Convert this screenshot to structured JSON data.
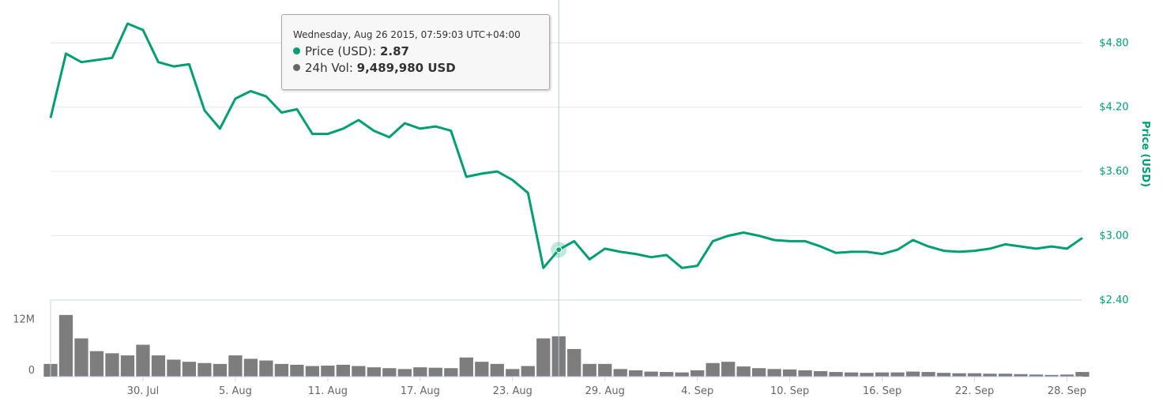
{
  "chart_data": {
    "type": "line",
    "x_axis": {
      "type": "date",
      "range": [
        "2015-07-24",
        "2015-09-29"
      ],
      "tick_labels": [
        "30. Jul",
        "5. Aug",
        "11. Aug",
        "17. Aug",
        "23. Aug",
        "29. Aug",
        "4. Sep",
        "10. Sep",
        "16. Sep",
        "22. Sep",
        "28. Sep"
      ]
    },
    "price_axis": {
      "title": "Price (USD)",
      "ylim": [
        2.4,
        5.2
      ],
      "tick_labels": [
        "$2.40",
        "$3.00",
        "$3.60",
        "$4.20",
        "$4.80"
      ],
      "ticks": [
        2.4,
        3.0,
        3.6,
        4.2,
        4.8
      ],
      "position": "right",
      "grid": true
    },
    "volume_axis": {
      "ylim": [
        0,
        18000000
      ],
      "tick_labels": [
        "0",
        "12M"
      ],
      "ticks": [
        0,
        12000000
      ],
      "position": "left"
    },
    "series": [
      {
        "name": "Price (USD)",
        "color": "#009e73",
        "points": [
          [
            "2015-07-24",
            4.1
          ],
          [
            "2015-07-25",
            4.7
          ],
          [
            "2015-07-26",
            4.62
          ],
          [
            "2015-07-27",
            4.64
          ],
          [
            "2015-07-28",
            4.66
          ],
          [
            "2015-07-29",
            4.98
          ],
          [
            "2015-07-30",
            4.92
          ],
          [
            "2015-07-31",
            4.62
          ],
          [
            "2015-08-01",
            4.58
          ],
          [
            "2015-08-02",
            4.6
          ],
          [
            "2015-08-03",
            4.17
          ],
          [
            "2015-08-04",
            4.0
          ],
          [
            "2015-08-05",
            4.28
          ],
          [
            "2015-08-06",
            4.35
          ],
          [
            "2015-08-07",
            4.3
          ],
          [
            "2015-08-08",
            4.15
          ],
          [
            "2015-08-09",
            4.18
          ],
          [
            "2015-08-10",
            3.95
          ],
          [
            "2015-08-11",
            3.95
          ],
          [
            "2015-08-12",
            4.0
          ],
          [
            "2015-08-13",
            4.08
          ],
          [
            "2015-08-14",
            3.98
          ],
          [
            "2015-08-15",
            3.92
          ],
          [
            "2015-08-16",
            4.05
          ],
          [
            "2015-08-17",
            4.0
          ],
          [
            "2015-08-18",
            4.02
          ],
          [
            "2015-08-19",
            3.98
          ],
          [
            "2015-08-20",
            3.55
          ],
          [
            "2015-08-21",
            3.58
          ],
          [
            "2015-08-22",
            3.6
          ],
          [
            "2015-08-23",
            3.52
          ],
          [
            "2015-08-24",
            3.4
          ],
          [
            "2015-08-25",
            2.7
          ],
          [
            "2015-08-26",
            2.87
          ],
          [
            "2015-08-27",
            2.95
          ],
          [
            "2015-08-28",
            2.78
          ],
          [
            "2015-08-29",
            2.88
          ],
          [
            "2015-08-30",
            2.85
          ],
          [
            "2015-08-31",
            2.83
          ],
          [
            "2015-09-01",
            2.8
          ],
          [
            "2015-09-02",
            2.82
          ],
          [
            "2015-09-03",
            2.7
          ],
          [
            "2015-09-04",
            2.72
          ],
          [
            "2015-09-05",
            2.95
          ],
          [
            "2015-09-06",
            3.0
          ],
          [
            "2015-09-07",
            3.03
          ],
          [
            "2015-09-08",
            3.0
          ],
          [
            "2015-09-09",
            2.96
          ],
          [
            "2015-09-10",
            2.95
          ],
          [
            "2015-09-11",
            2.95
          ],
          [
            "2015-09-12",
            2.9
          ],
          [
            "2015-09-13",
            2.84
          ],
          [
            "2015-09-14",
            2.85
          ],
          [
            "2015-09-15",
            2.85
          ],
          [
            "2015-09-16",
            2.83
          ],
          [
            "2015-09-17",
            2.87
          ],
          [
            "2015-09-18",
            2.96
          ],
          [
            "2015-09-19",
            2.9
          ],
          [
            "2015-09-20",
            2.86
          ],
          [
            "2015-09-21",
            2.85
          ],
          [
            "2015-09-22",
            2.86
          ],
          [
            "2015-09-23",
            2.88
          ],
          [
            "2015-09-24",
            2.92
          ],
          [
            "2015-09-25",
            2.9
          ],
          [
            "2015-09-26",
            2.88
          ],
          [
            "2015-09-27",
            2.9
          ],
          [
            "2015-09-28",
            2.88
          ],
          [
            "2015-09-29",
            2.98
          ]
        ]
      },
      {
        "name": "24h Vol",
        "color": "#666666",
        "points": [
          [
            "2015-07-24",
            3000000
          ],
          [
            "2015-07-25",
            14500000
          ],
          [
            "2015-07-26",
            9000000
          ],
          [
            "2015-07-27",
            6000000
          ],
          [
            "2015-07-28",
            5500000
          ],
          [
            "2015-07-29",
            5000000
          ],
          [
            "2015-07-30",
            7500000
          ],
          [
            "2015-07-31",
            5000000
          ],
          [
            "2015-08-01",
            4000000
          ],
          [
            "2015-08-02",
            3500000
          ],
          [
            "2015-08-03",
            3200000
          ],
          [
            "2015-08-04",
            3000000
          ],
          [
            "2015-08-05",
            5000000
          ],
          [
            "2015-08-06",
            4200000
          ],
          [
            "2015-08-07",
            3800000
          ],
          [
            "2015-08-08",
            3000000
          ],
          [
            "2015-08-09",
            2800000
          ],
          [
            "2015-08-10",
            2500000
          ],
          [
            "2015-08-11",
            2600000
          ],
          [
            "2015-08-12",
            2800000
          ],
          [
            "2015-08-13",
            2500000
          ],
          [
            "2015-08-14",
            2200000
          ],
          [
            "2015-08-15",
            2000000
          ],
          [
            "2015-08-16",
            1800000
          ],
          [
            "2015-08-17",
            2200000
          ],
          [
            "2015-08-18",
            2100000
          ],
          [
            "2015-08-19",
            2000000
          ],
          [
            "2015-08-20",
            4500000
          ],
          [
            "2015-08-21",
            3500000
          ],
          [
            "2015-08-22",
            3000000
          ],
          [
            "2015-08-23",
            1800000
          ],
          [
            "2015-08-24",
            2500000
          ],
          [
            "2015-08-25",
            9000000
          ],
          [
            "2015-08-26",
            9489980
          ],
          [
            "2015-08-27",
            6500000
          ],
          [
            "2015-08-28",
            3000000
          ],
          [
            "2015-08-29",
            3000000
          ],
          [
            "2015-08-30",
            1800000
          ],
          [
            "2015-08-31",
            1500000
          ],
          [
            "2015-09-01",
            1200000
          ],
          [
            "2015-09-02",
            1100000
          ],
          [
            "2015-09-03",
            1000000
          ],
          [
            "2015-09-04",
            1500000
          ],
          [
            "2015-09-05",
            3200000
          ],
          [
            "2015-09-06",
            3500000
          ],
          [
            "2015-09-07",
            2400000
          ],
          [
            "2015-09-08",
            2000000
          ],
          [
            "2015-09-09",
            1800000
          ],
          [
            "2015-09-10",
            1700000
          ],
          [
            "2015-09-11",
            1500000
          ],
          [
            "2015-09-12",
            1300000
          ],
          [
            "2015-09-13",
            1100000
          ],
          [
            "2015-09-14",
            1000000
          ],
          [
            "2015-09-15",
            900000
          ],
          [
            "2015-09-16",
            1000000
          ],
          [
            "2015-09-17",
            1000000
          ],
          [
            "2015-09-18",
            1200000
          ],
          [
            "2015-09-19",
            1100000
          ],
          [
            "2015-09-20",
            900000
          ],
          [
            "2015-09-21",
            800000
          ],
          [
            "2015-09-22",
            800000
          ],
          [
            "2015-09-23",
            700000
          ],
          [
            "2015-09-24",
            700000
          ],
          [
            "2015-09-25",
            600000
          ],
          [
            "2015-09-26",
            500000
          ],
          [
            "2015-09-27",
            400000
          ],
          [
            "2015-09-28",
            500000
          ],
          [
            "2015-09-29",
            1100000
          ]
        ]
      }
    ],
    "highlight": {
      "x": "2015-08-26",
      "price": 2.87
    },
    "tooltip": {
      "header": "Wednesday, Aug 26 2015, 07:59:03 UTC+04:00",
      "rows": [
        {
          "label": "Price (USD)",
          "value": "2.87",
          "color": "#009e73"
        },
        {
          "label": "24h Vol",
          "value": "9,489,980 USD",
          "color": "#666666"
        }
      ]
    }
  }
}
